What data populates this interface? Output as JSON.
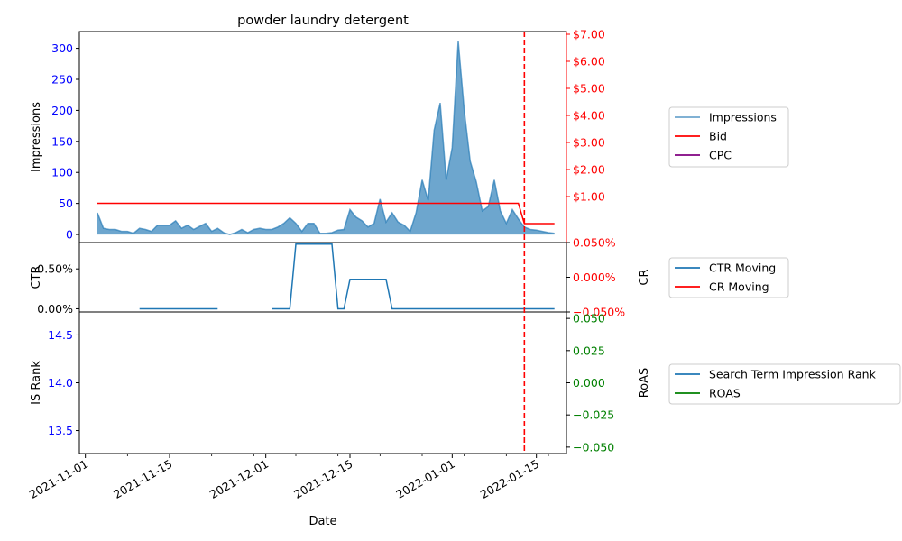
{
  "chart_data": {
    "type": "line",
    "title": "powder laundry detergent",
    "xlabel": "Date",
    "x_ticks": [
      "2021-11-01",
      "2021-11-15",
      "2021-12-01",
      "2021-12-15",
      "2022-01-01",
      "2022-01-15"
    ],
    "xlim": [
      "2021-10-31",
      "2022-01-20"
    ],
    "vline_date": "2022-01-13",
    "panels": [
      {
        "left_label": "Impressions",
        "right_label": "",
        "left_ylim": [
          -13,
          327
        ],
        "left_ticks": [
          "0",
          "50",
          "100",
          "150",
          "200",
          "250",
          "300"
        ],
        "left_tick_color": "#0000ff",
        "right_ylim": [
          -0.7,
          7.1
        ],
        "right_ticks": [
          "$1.00",
          "$2.00",
          "$3.00",
          "$4.00",
          "$5.00",
          "$6.00",
          "$7.00"
        ],
        "right_tick_color": "#ff0000",
        "legend": [
          "Impressions",
          "Bid",
          "CPC"
        ],
        "series": [
          {
            "name": "Impressions",
            "kind": "area",
            "color": "#1f77b4",
            "x": [
              "2021-11-03",
              "2021-11-04",
              "2021-11-05",
              "2021-11-06",
              "2021-11-07",
              "2021-11-08",
              "2021-11-09",
              "2021-11-10",
              "2021-11-11",
              "2021-11-12",
              "2021-11-13",
              "2021-11-14",
              "2021-11-15",
              "2021-11-16",
              "2021-11-17",
              "2021-11-18",
              "2021-11-19",
              "2021-11-20",
              "2021-11-21",
              "2021-11-22",
              "2021-11-23",
              "2021-11-24",
              "2021-11-25",
              "2021-11-26",
              "2021-11-27",
              "2021-11-28",
              "2021-11-29",
              "2021-11-30",
              "2021-12-01",
              "2021-12-02",
              "2021-12-03",
              "2021-12-04",
              "2021-12-05",
              "2021-12-06",
              "2021-12-07",
              "2021-12-08",
              "2021-12-09",
              "2021-12-10",
              "2021-12-11",
              "2021-12-12",
              "2021-12-13",
              "2021-12-14",
              "2021-12-15",
              "2021-12-16",
              "2021-12-17",
              "2021-12-18",
              "2021-12-19",
              "2021-12-20",
              "2021-12-21",
              "2021-12-22",
              "2021-12-23",
              "2021-12-24",
              "2021-12-25",
              "2021-12-26",
              "2021-12-27",
              "2021-12-28",
              "2021-12-29",
              "2021-12-30",
              "2021-12-31",
              "2022-01-01",
              "2022-01-02",
              "2022-01-03",
              "2022-01-04",
              "2022-01-05",
              "2022-01-06",
              "2022-01-07",
              "2022-01-08",
              "2022-01-09",
              "2022-01-10",
              "2022-01-11",
              "2022-01-12",
              "2022-01-13",
              "2022-01-14",
              "2022-01-15",
              "2022-01-16",
              "2022-01-17",
              "2022-01-18"
            ],
            "y": [
              35,
              10,
              8,
              8,
              5,
              5,
              2,
              10,
              8,
              5,
              15,
              15,
              15,
              22,
              10,
              15,
              8,
              13,
              18,
              5,
              10,
              3,
              0,
              3,
              8,
              3,
              8,
              10,
              8,
              8,
              12,
              18,
              27,
              18,
              5,
              18,
              18,
              2,
              2,
              3,
              7,
              8,
              40,
              28,
              22,
              12,
              18,
              57,
              20,
              35,
              20,
              15,
              5,
              35,
              88,
              55,
              168,
              212,
              88,
              140,
              312,
              200,
              118,
              85,
              38,
              45,
              88,
              38,
              18,
              40,
              25,
              12,
              8,
              7,
              5,
              3,
              2
            ]
          },
          {
            "name": "Bid",
            "kind": "line",
            "color": "#ff0000",
            "unit": "$",
            "x": [
              "2021-11-03",
              "2022-01-12",
              "2022-01-13",
              "2022-01-18"
            ],
            "y": [
              0.75,
              0.75,
              0,
              0
            ]
          },
          {
            "name": "CPC",
            "kind": "line",
            "color": "#800080",
            "x": [],
            "y": []
          }
        ]
      },
      {
        "left_label": "CTR",
        "right_label": "CR",
        "left_ylim": [
          -0.0004,
          0.0083
        ],
        "left_ticks": [
          "0.00%",
          "0.50%"
        ],
        "right_ylim": [
          -0.05,
          0.05
        ],
        "right_ticks": [
          "−0.050%",
          "0.000%",
          "0.050%"
        ],
        "right_tick_color": "#ff0000",
        "legend": [
          "CTR Moving",
          "CR Moving"
        ],
        "series": [
          {
            "name": "CTR Moving",
            "kind": "line",
            "color": "#1f77b4",
            "x": [
              "2021-11-10",
              "2021-11-23"
            ],
            "y": [
              0,
              0
            ]
          },
          {
            "name": "CTR Moving",
            "kind": "line",
            "color": "#1f77b4",
            "x": [
              "2021-12-02",
              "2021-12-05",
              "2021-12-06",
              "2021-12-12",
              "2021-12-13",
              "2021-12-14",
              "2021-12-15",
              "2021-12-21",
              "2021-12-22",
              "2022-01-18"
            ],
            "y": [
              0,
              0,
              0.0081,
              0.0081,
              0,
              0,
              0.0037,
              0.0037,
              0,
              0
            ]
          },
          {
            "name": "CR Moving",
            "kind": "line",
            "color": "#ff0000",
            "x": [],
            "y": []
          }
        ]
      },
      {
        "left_label": "IS Rank",
        "right_label": "RoAS",
        "left_ylim": [
          13.26,
          14.74
        ],
        "left_ticks": [
          "13.5",
          "14.0",
          "14.5"
        ],
        "left_tick_color": "#0000ff",
        "right_ylim": [
          -0.055,
          0.055
        ],
        "right_ticks": [
          "−0.050",
          "−0.025",
          "0.000",
          "0.025",
          "0.050"
        ],
        "right_tick_color": "#008000",
        "legend": [
          "Search Term Impression Rank",
          "ROAS"
        ],
        "series": [
          {
            "name": "Search Term Impression Rank",
            "kind": "line",
            "color": "#1f77b4",
            "x": [],
            "y": []
          },
          {
            "name": "ROAS",
            "kind": "line",
            "color": "#008000",
            "x": [],
            "y": []
          }
        ]
      }
    ]
  }
}
